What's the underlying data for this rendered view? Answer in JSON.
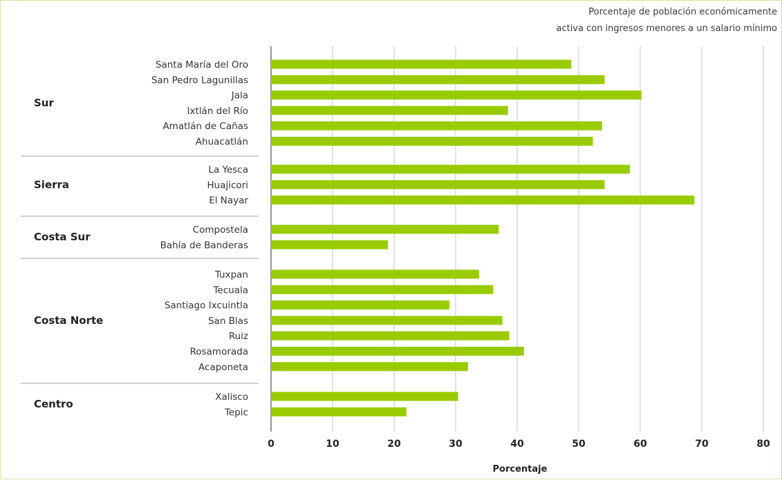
{
  "chart_data": {
    "type": "bar",
    "orientation": "horizontal",
    "title_lines": [
      "Porcentaje de población  económicamente",
      "activa con ingresos menores a un salario mínimo"
    ],
    "xlabel": "Porcentaje",
    "ylabel": "",
    "xlim": [
      0,
      80
    ],
    "ticks": [
      "0",
      "10",
      "20",
      "30",
      "40",
      "50",
      "60",
      "70",
      "80"
    ],
    "grid": true,
    "bar_color": "#99cc00",
    "groups": [
      {
        "name": "Sur",
        "categories": [
          "Santa María del Oro",
          "San Pedro Lagunillas",
          "Jala",
          "Ixtlán del Río",
          "Amatlán de Cañas",
          "Ahuacatlán"
        ],
        "values": [
          48.8,
          54.2,
          60.2,
          38.5,
          53.8,
          52.3
        ]
      },
      {
        "name": "Sierra",
        "categories": [
          "La Yesca",
          "Huajicori",
          "El Nayar"
        ],
        "values": [
          58.3,
          54.2,
          68.8
        ]
      },
      {
        "name": "Costa Sur",
        "categories": [
          "Compostela",
          "Bahía de Banderas"
        ],
        "values": [
          37.0,
          19.0
        ]
      },
      {
        "name": "Costa Norte",
        "categories": [
          "Tuxpan",
          "Tecuala",
          "Santiago Ixcuintla",
          "San Blas",
          "Ruiz",
          "Rosamorada",
          "Acaponeta"
        ],
        "values": [
          33.8,
          36.1,
          29.0,
          37.6,
          38.7,
          41.1,
          32.0
        ]
      },
      {
        "name": "Centro",
        "categories": [
          "Xalisco",
          "Tepic"
        ],
        "values": [
          30.4,
          22.0
        ]
      }
    ]
  }
}
